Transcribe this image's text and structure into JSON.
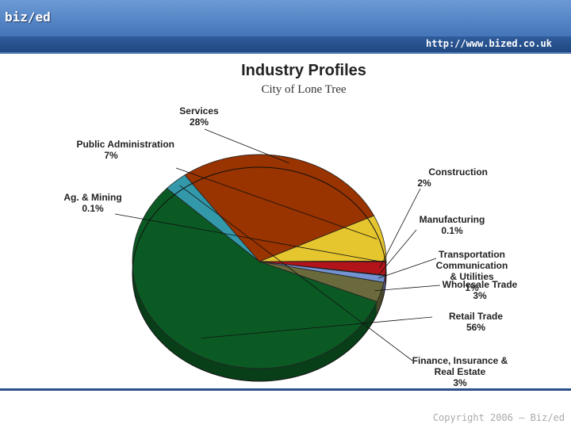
{
  "header": {
    "logo": "biz/ed",
    "url": "http://www.bized.co.uk"
  },
  "footer": "Copyright 2006 – Biz/ed",
  "chart_data": {
    "type": "pie",
    "title": "Industry Profiles",
    "subtitle": "City of Lone Tree",
    "categories": [
      "Services",
      "Public Administration",
      "Ag. & Mining",
      "Construction",
      "Manufacturing",
      "Transportation Communication & Utilities",
      "Wholesale Trade",
      "Retail Trade",
      "Finance, Insurance & Real Estate"
    ],
    "values": [
      28,
      7,
      0.1,
      2,
      0.1,
      1,
      3,
      56,
      3
    ],
    "value_labels": [
      "28%",
      "7%",
      "0.1%",
      "2%",
      "0.1%",
      "1%",
      "3%",
      "56%",
      "3%"
    ],
    "colors": [
      "#993300",
      "#e6c62e",
      "#f2e27a",
      "#b3141a",
      "#2b3a8a",
      "#7393d3",
      "#6b6a3c",
      "#0b5a24",
      "#3399aa"
    ]
  }
}
